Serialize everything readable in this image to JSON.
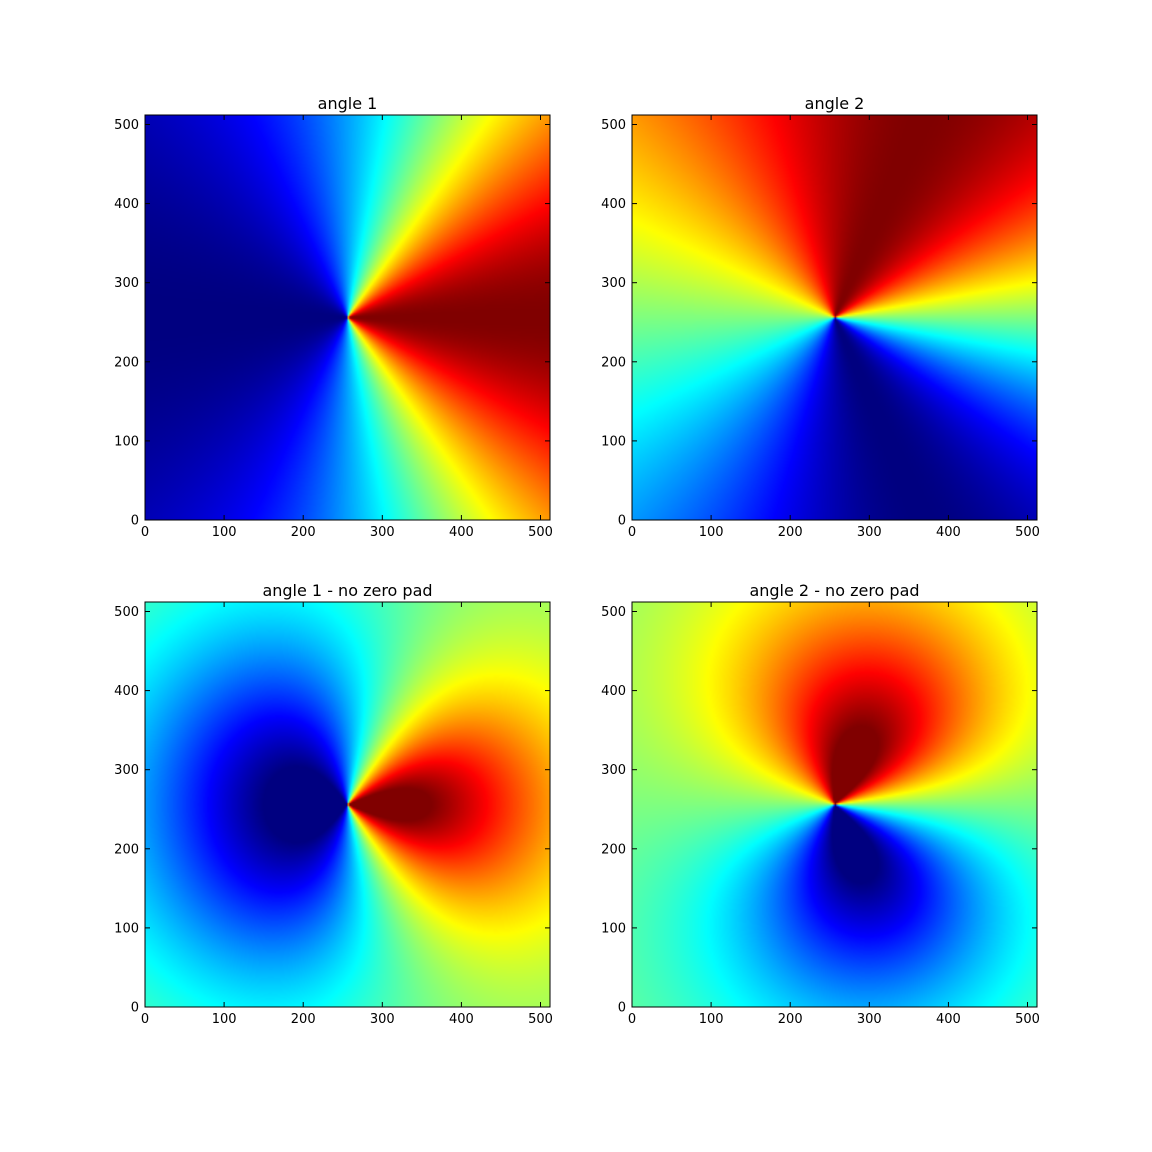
{
  "chart_data": [
    {
      "type": "heatmap",
      "title": "angle 1",
      "xlabel": "",
      "ylabel": "",
      "xlim": [
        0,
        512
      ],
      "ylim": [
        0,
        512
      ],
      "xticks": [
        0,
        100,
        200,
        300,
        400,
        500
      ],
      "yticks": [
        0,
        100,
        200,
        300,
        400,
        500
      ],
      "colormap": "jet",
      "grid": false,
      "field": {
        "style": "angle",
        "center": [
          256,
          256
        ],
        "swirl": 0.45,
        "decay": 0.0,
        "scale": 1.0,
        "phase": 0.0
      }
    },
    {
      "type": "heatmap",
      "title": "angle 2",
      "xlabel": "",
      "ylabel": "",
      "xlim": [
        0,
        512
      ],
      "ylim": [
        0,
        512
      ],
      "xticks": [
        0,
        100,
        200,
        300,
        400,
        500
      ],
      "yticks": [
        0,
        100,
        200,
        300,
        400,
        500
      ],
      "colormap": "jet",
      "grid": false,
      "field": {
        "style": "angle",
        "center": [
          256,
          256
        ],
        "swirl": 0.45,
        "decay": 0.0,
        "scale": 1.0,
        "phase": 1.5708
      }
    },
    {
      "type": "heatmap",
      "title": "angle 1 - no zero pad",
      "xlabel": "",
      "ylabel": "",
      "xlim": [
        0,
        512
      ],
      "ylim": [
        0,
        512
      ],
      "xticks": [
        0,
        100,
        200,
        300,
        400,
        500
      ],
      "yticks": [
        0,
        100,
        200,
        300,
        400,
        500
      ],
      "colormap": "jet",
      "grid": false,
      "field": {
        "style": "angle",
        "center": [
          256,
          256
        ],
        "swirl": 0.45,
        "decay": 1.6,
        "scale": 0.95,
        "phase": 0.0
      }
    },
    {
      "type": "heatmap",
      "title": "angle 2 - no zero pad",
      "xlabel": "",
      "ylabel": "",
      "xlim": [
        0,
        512
      ],
      "ylim": [
        0,
        512
      ],
      "xticks": [
        0,
        100,
        200,
        300,
        400,
        500
      ],
      "yticks": [
        0,
        100,
        200,
        300,
        400,
        500
      ],
      "colormap": "jet",
      "grid": false,
      "field": {
        "style": "angle",
        "center": [
          256,
          256
        ],
        "swirl": 0.45,
        "decay": 1.6,
        "scale": 0.95,
        "phase": 1.5708
      }
    }
  ]
}
